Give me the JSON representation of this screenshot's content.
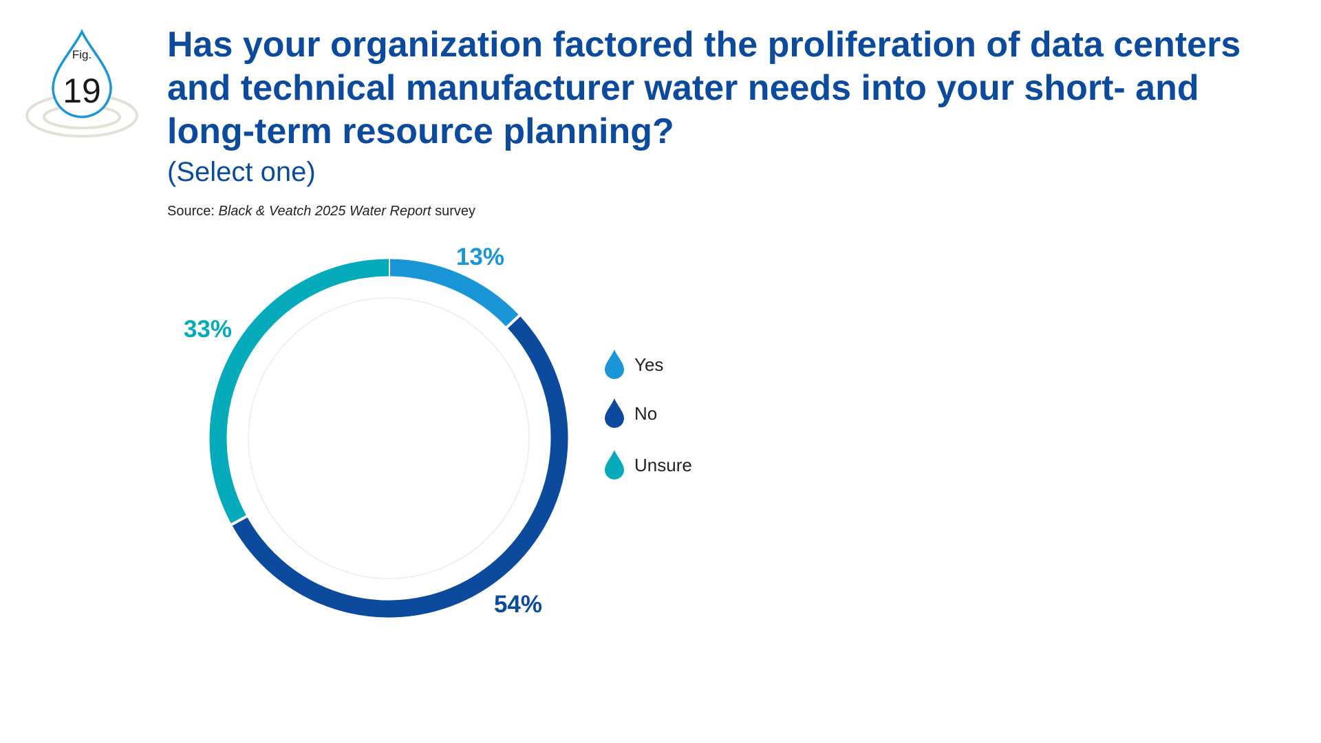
{
  "figure": {
    "label": "Fig.",
    "number": "19"
  },
  "title": "Has your organization factored the proliferation of data centers and technical manufacturer water needs into your short- and long-term resource planning?",
  "subtitle": "(Select one)",
  "source": {
    "prefix": "Source: ",
    "text": "Black & Veatch 2025 Water Report",
    "suffix": " survey"
  },
  "colors": {
    "title": "#0b4a9c",
    "yes": "#1a96d8",
    "no": "#0b4a9c",
    "unsure": "#06abbb",
    "badge_outline": "#1a96d8",
    "ripple": "#e3e0d6"
  },
  "icons": {
    "badge": "water-drop-icon",
    "legend_marker": "water-drop-icon"
  },
  "chart_data": {
    "type": "pie",
    "variant": "donut",
    "title": "Has your organization factored the proliferation of data centers and technical manufacturer water needs into your short- and long-term resource planning?",
    "categories": [
      "Yes",
      "No",
      "Unsure"
    ],
    "values": [
      13,
      54,
      33
    ],
    "labels": [
      "13%",
      "54%",
      "33%"
    ],
    "unit": "%",
    "legend_position": "right"
  }
}
